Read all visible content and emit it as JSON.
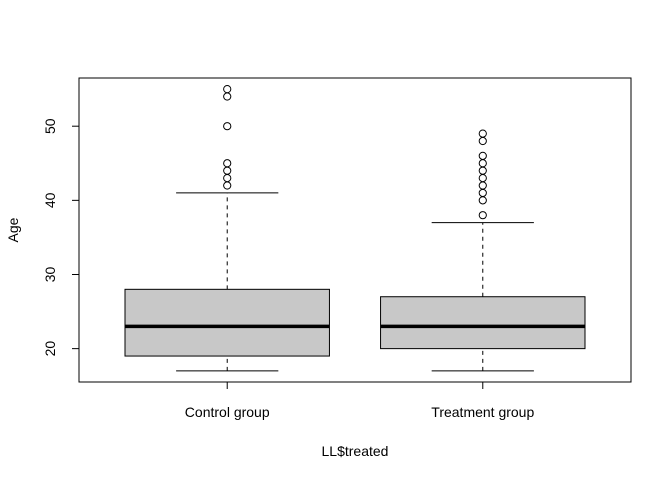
{
  "chart_data": {
    "type": "boxplot",
    "title": "",
    "xlabel": "LL$treated",
    "ylabel": "Age",
    "ylim": [
      15.5,
      56.5
    ],
    "yticks": [
      20,
      30,
      40,
      50
    ],
    "grid": false,
    "categories": [
      "Control group",
      "Treatment group"
    ],
    "box_fill": "#c8c8c8",
    "boxes": [
      {
        "name": "Control group",
        "whisker_low": 17,
        "q1": 19,
        "median": 23,
        "q3": 28,
        "whisker_high": 41,
        "outliers": [
          42,
          43,
          44,
          45,
          50,
          54,
          55
        ]
      },
      {
        "name": "Treatment group",
        "whisker_low": 17,
        "q1": 20,
        "median": 23,
        "q3": 27,
        "whisker_high": 37,
        "outliers": [
          38,
          40,
          41,
          42,
          43,
          44,
          45,
          46,
          48,
          49
        ]
      }
    ]
  }
}
